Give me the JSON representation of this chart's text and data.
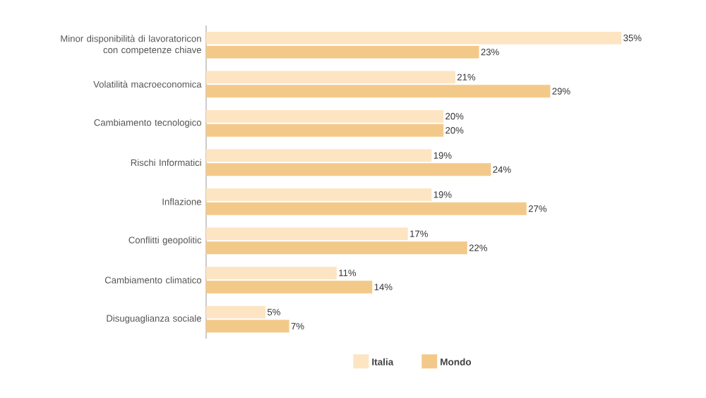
{
  "chart_data": {
    "type": "bar",
    "orientation": "horizontal",
    "legend": "bottom",
    "categories": [
      "Minor disponibilità di lavoratoricon con competenze chiave",
      "Volatilità macroeconomica",
      "Cambiamento tecnologico",
      "Rischi Informatici",
      "Inflazione",
      "Conflitti geopolitic",
      "Cambiamento climatico",
      "Disuguaglianza sociale"
    ],
    "series": [
      {
        "name": "Italia",
        "color": "#fde5c3",
        "values": [
          35,
          21,
          20,
          19,
          19,
          17,
          11,
          5
        ],
        "value_labels": [
          "35%",
          "21%",
          "20%",
          "19%",
          "19%",
          "17%",
          "11%",
          "5%"
        ]
      },
      {
        "name": "Mondo",
        "color": "#f3c98a",
        "values": [
          23,
          29,
          20,
          24,
          27,
          22,
          14,
          7
        ],
        "value_labels": [
          "23%",
          "29%",
          "20%",
          "24%",
          "27%",
          "22%",
          "14%",
          "7%"
        ]
      }
    ]
  }
}
